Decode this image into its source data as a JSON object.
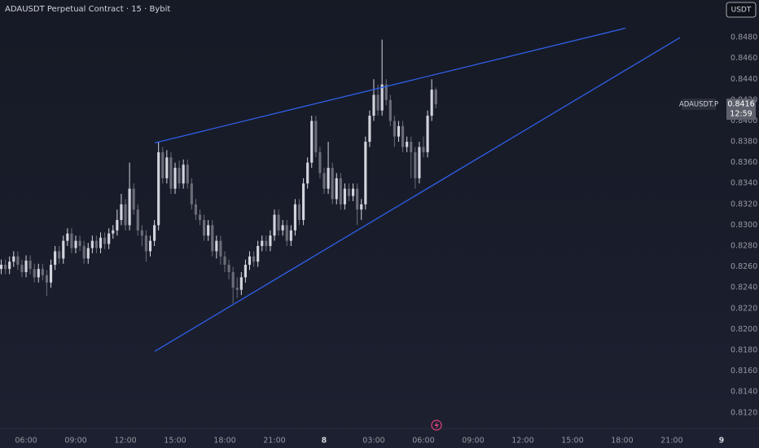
{
  "chart_data": {
    "type": "candlestick",
    "title": "ADAUSDT Perpetual Contract · 15 · Bybit",
    "currency_button": "USDT",
    "up_color": "#d1d4dc",
    "down_color": "#6a6d78",
    "grid": false,
    "candles": [
      [
        0.8258,
        0.8267,
        0.8253,
        0.8262
      ],
      [
        0.8262,
        0.8267,
        0.8253,
        0.8258
      ],
      [
        0.8258,
        0.827,
        0.8253,
        0.8265
      ],
      [
        0.8265,
        0.8275,
        0.826,
        0.827
      ],
      [
        0.827,
        0.8275,
        0.8257,
        0.8262
      ],
      [
        0.8262,
        0.8267,
        0.825,
        0.8255
      ],
      [
        0.8255,
        0.8271,
        0.825,
        0.8266
      ],
      [
        0.8266,
        0.8271,
        0.8253,
        0.8258
      ],
      [
        0.8258,
        0.8263,
        0.8245,
        0.825
      ],
      [
        0.825,
        0.8263,
        0.8245,
        0.8258
      ],
      [
        0.8258,
        0.8263,
        0.8247,
        0.8252
      ],
      [
        0.8252,
        0.8257,
        0.8232,
        0.8245
      ],
      [
        0.8245,
        0.8267,
        0.824,
        0.8262
      ],
      [
        0.8262,
        0.828,
        0.8257,
        0.8275
      ],
      [
        0.8275,
        0.828,
        0.8263,
        0.8268
      ],
      [
        0.8268,
        0.829,
        0.8263,
        0.8285
      ],
      [
        0.8285,
        0.8297,
        0.828,
        0.8292
      ],
      [
        0.8292,
        0.8297,
        0.8273,
        0.8278
      ],
      [
        0.8278,
        0.829,
        0.8273,
        0.8285
      ],
      [
        0.8285,
        0.829,
        0.8275,
        0.828
      ],
      [
        0.828,
        0.8285,
        0.8263,
        0.8268
      ],
      [
        0.8268,
        0.8283,
        0.8263,
        0.8278
      ],
      [
        0.8278,
        0.829,
        0.8273,
        0.8285
      ],
      [
        0.8285,
        0.829,
        0.8273,
        0.8278
      ],
      [
        0.8278,
        0.8293,
        0.8273,
        0.8288
      ],
      [
        0.8288,
        0.8293,
        0.8277,
        0.8282
      ],
      [
        0.8282,
        0.8297,
        0.8277,
        0.8292
      ],
      [
        0.8292,
        0.83,
        0.8287,
        0.8295
      ],
      [
        0.8295,
        0.8315,
        0.829,
        0.8305
      ],
      [
        0.8305,
        0.833,
        0.83,
        0.832
      ],
      [
        0.832,
        0.8325,
        0.8295,
        0.83
      ],
      [
        0.83,
        0.836,
        0.8295,
        0.8335
      ],
      [
        0.8335,
        0.834,
        0.831,
        0.8315
      ],
      [
        0.8315,
        0.832,
        0.829,
        0.8295
      ],
      [
        0.8295,
        0.83,
        0.828,
        0.829
      ],
      [
        0.829,
        0.8295,
        0.8265,
        0.8275
      ],
      [
        0.8275,
        0.829,
        0.827,
        0.8285
      ],
      [
        0.8285,
        0.8305,
        0.828,
        0.83
      ],
      [
        0.83,
        0.838,
        0.8295,
        0.837
      ],
      [
        0.837,
        0.8375,
        0.834,
        0.8345
      ],
      [
        0.8345,
        0.8372,
        0.834,
        0.8365
      ],
      [
        0.8365,
        0.837,
        0.833,
        0.8335
      ],
      [
        0.8335,
        0.836,
        0.833,
        0.8355
      ],
      [
        0.8355,
        0.8362,
        0.8335,
        0.834
      ],
      [
        0.834,
        0.8363,
        0.8335,
        0.8358
      ],
      [
        0.8358,
        0.8363,
        0.8335,
        0.834
      ],
      [
        0.834,
        0.8345,
        0.8315,
        0.832
      ],
      [
        0.832,
        0.8325,
        0.8305,
        0.831
      ],
      [
        0.831,
        0.8315,
        0.83,
        0.8305
      ],
      [
        0.8305,
        0.831,
        0.8285,
        0.829
      ],
      [
        0.829,
        0.8305,
        0.8285,
        0.83
      ],
      [
        0.83,
        0.8305,
        0.827,
        0.8275
      ],
      [
        0.8275,
        0.829,
        0.8268,
        0.8285
      ],
      [
        0.8285,
        0.829,
        0.8262,
        0.827
      ],
      [
        0.827,
        0.8275,
        0.8255,
        0.8262
      ],
      [
        0.8262,
        0.8267,
        0.8248,
        0.8255
      ],
      [
        0.8255,
        0.826,
        0.8225,
        0.824
      ],
      [
        0.824,
        0.825,
        0.823,
        0.8238
      ],
      [
        0.8238,
        0.8255,
        0.8233,
        0.825
      ],
      [
        0.825,
        0.8267,
        0.8245,
        0.8262
      ],
      [
        0.8262,
        0.8275,
        0.8257,
        0.827
      ],
      [
        0.827,
        0.8275,
        0.826,
        0.8265
      ],
      [
        0.8265,
        0.8285,
        0.826,
        0.828
      ],
      [
        0.828,
        0.829,
        0.8275,
        0.8285
      ],
      [
        0.8285,
        0.829,
        0.8275,
        0.828
      ],
      [
        0.828,
        0.8295,
        0.8275,
        0.829
      ],
      [
        0.829,
        0.8315,
        0.8285,
        0.831
      ],
      [
        0.831,
        0.8315,
        0.829,
        0.8295
      ],
      [
        0.8295,
        0.8305,
        0.829,
        0.83
      ],
      [
        0.83,
        0.8305,
        0.828,
        0.8285
      ],
      [
        0.8285,
        0.83,
        0.828,
        0.8295
      ],
      [
        0.8295,
        0.8325,
        0.829,
        0.832
      ],
      [
        0.832,
        0.8325,
        0.83,
        0.8305
      ],
      [
        0.8305,
        0.8345,
        0.83,
        0.834
      ],
      [
        0.834,
        0.8365,
        0.8335,
        0.836
      ],
      [
        0.836,
        0.8405,
        0.8355,
        0.84
      ],
      [
        0.84,
        0.8405,
        0.8365,
        0.837
      ],
      [
        0.837,
        0.8375,
        0.8345,
        0.835
      ],
      [
        0.835,
        0.8355,
        0.833,
        0.8335
      ],
      [
        0.8335,
        0.838,
        0.833,
        0.8355
      ],
      [
        0.8355,
        0.836,
        0.832,
        0.8325
      ],
      [
        0.8325,
        0.835,
        0.832,
        0.8345
      ],
      [
        0.8345,
        0.835,
        0.8315,
        0.832
      ],
      [
        0.832,
        0.834,
        0.8315,
        0.8335
      ],
      [
        0.8335,
        0.834,
        0.8323,
        0.8328
      ],
      [
        0.8328,
        0.834,
        0.8323,
        0.8335
      ],
      [
        0.8335,
        0.834,
        0.83,
        0.8315
      ],
      [
        0.8315,
        0.8325,
        0.8305,
        0.832
      ],
      [
        0.832,
        0.8385,
        0.8315,
        0.838
      ],
      [
        0.838,
        0.841,
        0.8375,
        0.8405
      ],
      [
        0.8405,
        0.844,
        0.84,
        0.8425
      ],
      [
        0.8425,
        0.8435,
        0.8405,
        0.841
      ],
      [
        0.841,
        0.8478,
        0.8405,
        0.8435
      ],
      [
        0.8435,
        0.844,
        0.8415,
        0.842
      ],
      [
        0.842,
        0.8425,
        0.8395,
        0.84
      ],
      [
        0.84,
        0.8405,
        0.8375,
        0.8385
      ],
      [
        0.8385,
        0.84,
        0.838,
        0.8395
      ],
      [
        0.8395,
        0.84,
        0.837,
        0.8375
      ],
      [
        0.8375,
        0.8385,
        0.837,
        0.838
      ],
      [
        0.838,
        0.8385,
        0.8345,
        0.837
      ],
      [
        0.837,
        0.8375,
        0.8335,
        0.8345
      ],
      [
        0.8345,
        0.838,
        0.834,
        0.8375
      ],
      [
        0.8375,
        0.8385,
        0.8365,
        0.837
      ],
      [
        0.837,
        0.841,
        0.8365,
        0.8405
      ],
      [
        0.8405,
        0.844,
        0.84,
        0.843
      ],
      [
        0.843,
        0.8432,
        0.8412,
        0.8416
      ]
    ],
    "trendlines": [
      {
        "color": "#2f5fe8",
        "x": [
          37.1,
          150.8
        ],
        "y": [
          0.8379,
          0.8489
        ]
      },
      {
        "color": "#2f5fe8",
        "x": [
          37.1,
          164
        ],
        "y": [
          0.8179,
          0.848
        ]
      }
    ],
    "last_price": {
      "symbol": "ADAUSDT.P",
      "value": 0.8416,
      "countdown": "12:59"
    },
    "xlim": [
      -0.3,
      174.8
    ],
    "xticks": [
      {
        "value": 6,
        "label": "06:00"
      },
      {
        "value": 18,
        "label": "09:00"
      },
      {
        "value": 30,
        "label": "12:00"
      },
      {
        "value": 42,
        "label": "15:00"
      },
      {
        "value": 54,
        "label": "18:00"
      },
      {
        "value": 66,
        "label": "21:00"
      },
      {
        "value": 78,
        "label": "8"
      },
      {
        "value": 90,
        "label": "03:00"
      },
      {
        "value": 102,
        "label": "06:00"
      },
      {
        "value": 114,
        "label": "09:00"
      },
      {
        "value": 126,
        "label": "12:00"
      },
      {
        "value": 138,
        "label": "15:00"
      },
      {
        "value": 150,
        "label": "18:00"
      },
      {
        "value": 162,
        "label": "21:00"
      },
      {
        "value": 174,
        "label": "9"
      }
    ],
    "ylim": [
      0.8105,
      0.8516
    ],
    "yticks": [
      {
        "value": 0.812,
        "label": "0.8120"
      },
      {
        "value": 0.814,
        "label": "0.8140"
      },
      {
        "value": 0.816,
        "label": "0.8160"
      },
      {
        "value": 0.818,
        "label": "0.8180"
      },
      {
        "value": 0.82,
        "label": "0.8200"
      },
      {
        "value": 0.822,
        "label": "0.8220"
      },
      {
        "value": 0.824,
        "label": "0.8240"
      },
      {
        "value": 0.826,
        "label": "0.8260"
      },
      {
        "value": 0.828,
        "label": "0.8280"
      },
      {
        "value": 0.83,
        "label": "0.8300"
      },
      {
        "value": 0.832,
        "label": "0.8320"
      },
      {
        "value": 0.834,
        "label": "0.8340"
      },
      {
        "value": 0.836,
        "label": "0.8360"
      },
      {
        "value": 0.838,
        "label": "0.8380"
      },
      {
        "value": 0.84,
        "label": "0.8400"
      },
      {
        "value": 0.842,
        "label": "0.8420"
      },
      {
        "value": 0.844,
        "label": "0.8440"
      },
      {
        "value": 0.846,
        "label": "0.8460"
      },
      {
        "value": 0.848,
        "label": "0.8480"
      }
    ]
  }
}
